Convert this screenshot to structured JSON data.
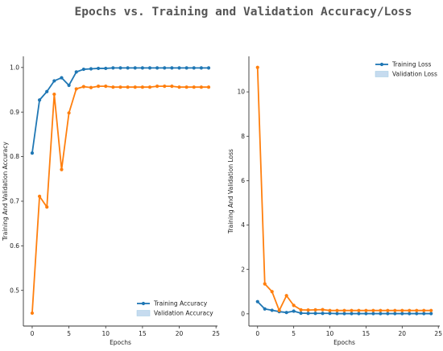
{
  "figure": {
    "suptitle": "Epochs vs. Training and Validation Accuracy/Loss"
  },
  "colors": {
    "training": "#1f77b4",
    "validation": "#ff7f0e",
    "legend_patch": "#c6dbef"
  },
  "chart_data": [
    {
      "type": "line",
      "xlabel": "Epochs",
      "ylabel": "Training And Validation Accuracy",
      "xlim": [
        -1.2,
        25.2
      ],
      "ylim": [
        0.42,
        1.025
      ],
      "xticks": [
        0,
        5,
        10,
        15,
        20,
        25
      ],
      "yticks": [
        0.5,
        0.6,
        0.7,
        0.8,
        0.9,
        1.0
      ],
      "ytick_labels": [
        "0.5",
        "0.6",
        "0.7",
        "0.8",
        "0.9",
        "1.0"
      ],
      "grid": false,
      "legend_position": "lower-right",
      "x": [
        0,
        1,
        2,
        3,
        4,
        5,
        6,
        7,
        8,
        9,
        10,
        11,
        12,
        13,
        14,
        15,
        16,
        17,
        18,
        19,
        20,
        21,
        22,
        23,
        24
      ],
      "series": [
        {
          "name": "Training Accuracy",
          "marker": "line",
          "values": [
            0.808,
            0.927,
            0.946,
            0.97,
            0.977,
            0.96,
            0.99,
            0.996,
            0.997,
            0.998,
            0.998,
            0.999,
            0.999,
            0.999,
            0.999,
            0.999,
            0.999,
            0.999,
            0.999,
            0.999,
            0.999,
            0.999,
            0.999,
            0.999,
            0.999
          ]
        },
        {
          "name": "Validation Accuracy",
          "marker": "patch",
          "values": [
            0.449,
            0.711,
            0.687,
            0.94,
            0.771,
            0.898,
            0.952,
            0.957,
            0.955,
            0.958,
            0.958,
            0.956,
            0.956,
            0.956,
            0.956,
            0.956,
            0.956,
            0.958,
            0.958,
            0.958,
            0.956,
            0.956,
            0.956,
            0.956,
            0.956
          ]
        }
      ]
    },
    {
      "type": "line",
      "xlabel": "Epochs",
      "ylabel": "Training And Validation Loss",
      "xlim": [
        -1.2,
        25.2
      ],
      "ylim": [
        -0.55,
        11.6
      ],
      "xticks": [
        0,
        5,
        10,
        15,
        20,
        25
      ],
      "yticks": [
        0,
        2,
        4,
        6,
        8,
        10
      ],
      "ytick_labels": [
        "0",
        "2",
        "4",
        "6",
        "8",
        "10"
      ],
      "grid": false,
      "legend_position": "top-right",
      "x": [
        0,
        1,
        2,
        3,
        4,
        5,
        6,
        7,
        8,
        9,
        10,
        11,
        12,
        13,
        14,
        15,
        16,
        17,
        18,
        19,
        20,
        21,
        22,
        23,
        24
      ],
      "series": [
        {
          "name": "Training Loss",
          "marker": "line",
          "values": [
            0.55,
            0.22,
            0.16,
            0.1,
            0.06,
            0.12,
            0.03,
            0.02,
            0.02,
            0.02,
            0.02,
            0.01,
            0.01,
            0.01,
            0.01,
            0.01,
            0.01,
            0.01,
            0.01,
            0.01,
            0.01,
            0.01,
            0.01,
            0.01,
            0.01
          ]
        },
        {
          "name": "Validation Loss",
          "marker": "patch",
          "values": [
            11.1,
            1.35,
            1.0,
            0.15,
            0.82,
            0.38,
            0.18,
            0.17,
            0.18,
            0.19,
            0.15,
            0.15,
            0.15,
            0.15,
            0.15,
            0.15,
            0.15,
            0.15,
            0.15,
            0.15,
            0.15,
            0.15,
            0.15,
            0.15,
            0.15
          ]
        }
      ]
    }
  ]
}
